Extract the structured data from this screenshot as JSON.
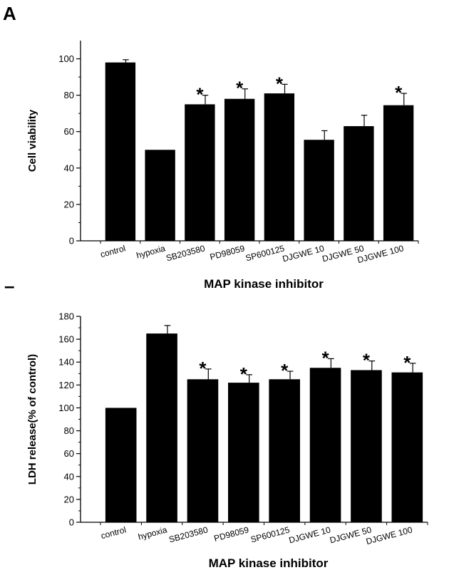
{
  "figure": {
    "panel_a_letter": "A",
    "panel_b_letter": "–"
  },
  "chart_data": [
    {
      "type": "bar",
      "panel": "A",
      "categories": [
        "control",
        "hypoxia",
        "SB203580",
        "PD98059",
        "SP600125",
        "DJGWE 10",
        "DJGWE 50",
        "DJGWE 100"
      ],
      "values": [
        98,
        50,
        75,
        78,
        81,
        55.5,
        63,
        74.5
      ],
      "errors": [
        1.5,
        0,
        5,
        5.5,
        5,
        5,
        6,
        6.5
      ],
      "significant": [
        false,
        false,
        true,
        true,
        true,
        false,
        false,
        true
      ],
      "significance_marker": "*",
      "xlabel": "MAP kinase inhibitor",
      "ylabel": "Cell viability",
      "ylim": [
        0,
        110
      ],
      "yticks": [
        0,
        20,
        40,
        60,
        80,
        100
      ],
      "grid": false,
      "bar_color": "#000000"
    },
    {
      "type": "bar",
      "panel": "B",
      "categories": [
        "control",
        "hypoxia",
        "SB203580",
        "PD98059",
        "SP600125",
        "DJGWE 10",
        "DJGWE 50",
        "DJGWE 100"
      ],
      "values": [
        100,
        165,
        125,
        122,
        125,
        135,
        133,
        131
      ],
      "errors": [
        0,
        7,
        9,
        7,
        7,
        8,
        8,
        8
      ],
      "significant": [
        false,
        false,
        true,
        true,
        true,
        true,
        true,
        true
      ],
      "significance_marker": "*",
      "xlabel": "MAP kinase inhibitor",
      "ylabel": "LDH release(% of control)",
      "ylim": [
        0,
        180
      ],
      "yticks": [
        0,
        20,
        40,
        60,
        80,
        100,
        120,
        140,
        160,
        180
      ],
      "grid": false,
      "bar_color": "#000000"
    }
  ]
}
